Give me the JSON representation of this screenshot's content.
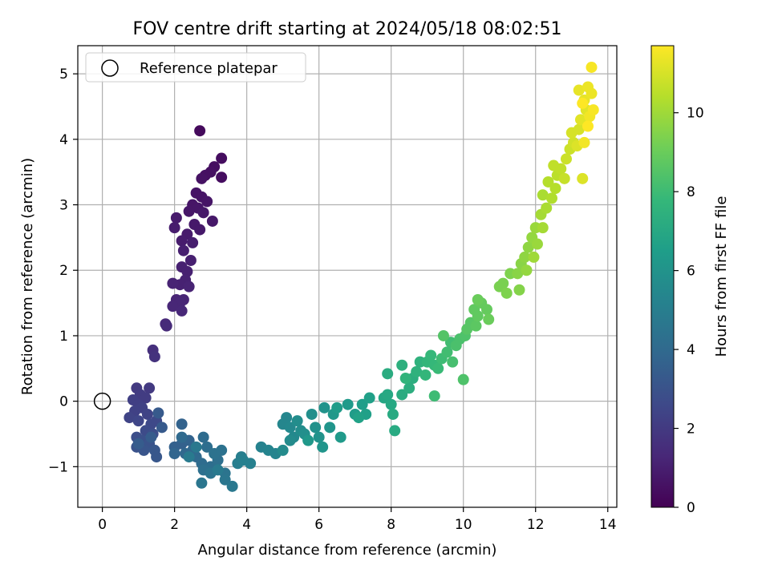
{
  "chart_data": {
    "type": "scatter",
    "title": "FOV centre drift starting at 2024/05/18 08:02:51",
    "xlabel": "Angular distance from reference (arcmin)",
    "ylabel": "Rotation from reference (arcmin)",
    "xlim": [
      -0.68,
      14.25
    ],
    "ylim": [
      -1.62,
      5.43
    ],
    "xticks": [
      0,
      2,
      4,
      6,
      8,
      10,
      12,
      14
    ],
    "yticks": [
      -1,
      0,
      1,
      2,
      3,
      4,
      5
    ],
    "xtick_labels": [
      "0",
      "2",
      "4",
      "6",
      "8",
      "10",
      "12",
      "14"
    ],
    "ytick_labels": [
      "−1",
      "0",
      "1",
      "2",
      "3",
      "4",
      "5"
    ],
    "grid": true,
    "legend": {
      "location": "upper-left",
      "entries": [
        "Reference platepar"
      ]
    },
    "reference_point": {
      "x": 0,
      "y": 0,
      "marker": "open-circle"
    },
    "colorbar": {
      "label": "Hours from first FF file",
      "range": [
        0,
        11.7
      ],
      "ticks": [
        0,
        2,
        4,
        6,
        8,
        10
      ],
      "tick_labels": [
        "0",
        "2",
        "4",
        "6",
        "8",
        "10"
      ],
      "colormap": "viridis",
      "colors": [
        "#440154",
        "#482878",
        "#3e4989",
        "#31688e",
        "#26828e",
        "#1f9e89",
        "#35b779",
        "#6ece58",
        "#b5de2b",
        "#fde725"
      ]
    },
    "points": [
      [
        2.7,
        4.13,
        0.3
      ],
      [
        3.3,
        3.71,
        0.4
      ],
      [
        3.3,
        3.42,
        0.4
      ],
      [
        3.1,
        3.58,
        0.45
      ],
      [
        3.0,
        3.5,
        0.5
      ],
      [
        2.85,
        3.45,
        0.5
      ],
      [
        2.75,
        3.4,
        0.55
      ],
      [
        2.6,
        3.18,
        0.6
      ],
      [
        2.75,
        3.12,
        0.6
      ],
      [
        2.9,
        3.05,
        0.65
      ],
      [
        2.5,
        3.0,
        0.65
      ],
      [
        2.65,
        2.95,
        0.7
      ],
      [
        2.4,
        2.9,
        0.7
      ],
      [
        2.8,
        2.88,
        0.75
      ],
      [
        3.05,
        2.75,
        0.75
      ],
      [
        2.55,
        2.7,
        0.8
      ],
      [
        2.7,
        2.62,
        0.8
      ],
      [
        2.35,
        2.55,
        0.85
      ],
      [
        2.05,
        2.8,
        0.85
      ],
      [
        2.0,
        2.65,
        0.9
      ],
      [
        2.2,
        2.45,
        0.9
      ],
      [
        2.5,
        2.42,
        0.95
      ],
      [
        2.25,
        2.3,
        1.0
      ],
      [
        2.45,
        2.15,
        1.0
      ],
      [
        2.2,
        2.05,
        1.05
      ],
      [
        2.35,
        1.98,
        1.05
      ],
      [
        2.3,
        1.85,
        1.1
      ],
      [
        2.15,
        1.78,
        1.1
      ],
      [
        2.4,
        1.75,
        1.15
      ],
      [
        1.95,
        1.8,
        1.15
      ],
      [
        2.25,
        1.55,
        1.2
      ],
      [
        2.05,
        1.55,
        1.2
      ],
      [
        2.15,
        1.5,
        1.25
      ],
      [
        1.95,
        1.45,
        1.25
      ],
      [
        2.2,
        1.38,
        1.3
      ],
      [
        1.75,
        1.18,
        1.35
      ],
      [
        1.78,
        1.15,
        1.4
      ],
      [
        1.4,
        0.78,
        1.6
      ],
      [
        1.45,
        0.68,
        1.7
      ],
      [
        0.95,
        0.2,
        2.0
      ],
      [
        1.3,
        0.2,
        2.0
      ],
      [
        1.05,
        0.1,
        2.1
      ],
      [
        1.2,
        0.05,
        2.1
      ],
      [
        0.85,
        0.02,
        2.2
      ],
      [
        1.0,
        -0.05,
        2.2
      ],
      [
        1.1,
        -0.1,
        2.3
      ],
      [
        0.9,
        -0.15,
        2.3
      ],
      [
        1.25,
        -0.2,
        2.4
      ],
      [
        0.75,
        -0.25,
        2.4
      ],
      [
        1.0,
        -0.3,
        2.5
      ],
      [
        1.35,
        -0.35,
        2.6
      ],
      [
        1.5,
        -0.3,
        2.6
      ],
      [
        1.2,
        -0.45,
        2.7
      ],
      [
        1.4,
        -0.5,
        2.8
      ],
      [
        0.95,
        -0.55,
        2.8
      ],
      [
        1.1,
        -0.6,
        2.9
      ],
      [
        1.3,
        -0.65,
        3.0
      ],
      [
        0.95,
        -0.7,
        3.0
      ],
      [
        1.15,
        -0.75,
        3.1
      ],
      [
        1.45,
        -0.75,
        3.2
      ],
      [
        1.5,
        -0.85,
        3.2
      ],
      [
        1.55,
        -0.18,
        3.3
      ],
      [
        1.65,
        -0.4,
        3.3
      ],
      [
        1.35,
        -0.55,
        3.4
      ],
      [
        1.0,
        -0.65,
        3.4
      ],
      [
        2.0,
        -0.7,
        3.6
      ],
      [
        2.2,
        -0.65,
        3.6
      ],
      [
        2.4,
        -0.6,
        3.7
      ],
      [
        2.2,
        -0.35,
        3.7
      ],
      [
        2.0,
        -0.8,
        3.8
      ],
      [
        2.3,
        -0.8,
        3.9
      ],
      [
        2.5,
        -0.75,
        3.9
      ],
      [
        2.2,
        -0.55,
        4.0
      ],
      [
        2.6,
        -0.85,
        4.0
      ],
      [
        2.8,
        -0.55,
        4.1
      ],
      [
        2.75,
        -0.95,
        4.1
      ],
      [
        2.9,
        -0.7,
        4.2
      ],
      [
        3.0,
        -1.0,
        4.2
      ],
      [
        3.2,
        -0.9,
        4.3
      ],
      [
        2.8,
        -1.05,
        4.3
      ],
      [
        3.1,
        -0.8,
        4.4
      ],
      [
        3.3,
        -0.75,
        4.4
      ],
      [
        3.4,
        -1.1,
        4.5
      ],
      [
        3.0,
        -1.1,
        4.5
      ],
      [
        2.75,
        -1.25,
        4.6
      ],
      [
        3.4,
        -1.2,
        4.6
      ],
      [
        3.6,
        -1.3,
        4.7
      ],
      [
        2.6,
        -0.7,
        4.7
      ],
      [
        2.4,
        -0.85,
        4.8
      ],
      [
        3.2,
        -1.05,
        4.8
      ],
      [
        3.75,
        -0.95,
        5.0
      ],
      [
        3.85,
        -0.85,
        5.0
      ],
      [
        4.1,
        -0.95,
        5.1
      ],
      [
        3.9,
        -0.9,
        5.1
      ],
      [
        4.4,
        -0.7,
        5.2
      ],
      [
        4.6,
        -0.75,
        5.3
      ],
      [
        4.8,
        -0.8,
        5.3
      ],
      [
        5.0,
        -0.35,
        5.4
      ],
      [
        5.1,
        -0.25,
        5.4
      ],
      [
        5.2,
        -0.4,
        5.5
      ],
      [
        5.3,
        -0.55,
        5.5
      ],
      [
        5.0,
        -0.75,
        5.6
      ],
      [
        5.2,
        -0.6,
        5.6
      ],
      [
        5.5,
        -0.45,
        5.7
      ],
      [
        5.4,
        -0.3,
        5.7
      ],
      [
        5.6,
        -0.5,
        5.8
      ],
      [
        5.8,
        -0.2,
        5.8
      ],
      [
        5.9,
        -0.4,
        5.9
      ],
      [
        6.0,
        -0.55,
        6.0
      ],
      [
        6.15,
        -0.1,
        6.0
      ],
      [
        6.3,
        -0.4,
        6.1
      ],
      [
        6.1,
        -0.7,
        6.1
      ],
      [
        5.7,
        -0.6,
        6.2
      ],
      [
        6.4,
        -0.2,
        6.2
      ],
      [
        6.6,
        -0.55,
        6.3
      ],
      [
        6.8,
        -0.05,
        6.3
      ],
      [
        6.5,
        -0.1,
        6.4
      ],
      [
        7.0,
        -0.2,
        6.4
      ],
      [
        7.2,
        -0.05,
        6.5
      ],
      [
        7.4,
        0.05,
        6.6
      ],
      [
        7.3,
        -0.2,
        6.6
      ],
      [
        7.1,
        -0.25,
        6.7
      ],
      [
        7.8,
        0.05,
        6.9
      ],
      [
        7.9,
        0.1,
        7.0
      ],
      [
        8.0,
        -0.05,
        7.0
      ],
      [
        8.1,
        -0.45,
        7.1
      ],
      [
        8.05,
        -0.2,
        7.1
      ],
      [
        7.9,
        0.42,
        7.2
      ],
      [
        8.3,
        0.1,
        7.2
      ],
      [
        8.5,
        0.2,
        7.3
      ],
      [
        8.6,
        0.35,
        7.3
      ],
      [
        8.3,
        0.55,
        7.4
      ],
      [
        8.7,
        0.45,
        7.5
      ],
      [
        8.8,
        0.6,
        7.5
      ],
      [
        8.4,
        0.35,
        7.6
      ],
      [
        8.95,
        0.4,
        7.7
      ],
      [
        9.0,
        0.6,
        7.7
      ],
      [
        9.1,
        0.7,
        7.8
      ],
      [
        9.2,
        0.55,
        7.8
      ],
      [
        9.3,
        0.5,
        7.9
      ],
      [
        9.4,
        0.65,
        8.0
      ],
      [
        9.2,
        0.08,
        8.0
      ],
      [
        9.55,
        0.75,
        8.1
      ],
      [
        9.65,
        0.9,
        8.1
      ],
      [
        9.7,
        0.6,
        8.2
      ],
      [
        9.8,
        0.85,
        8.3
      ],
      [
        9.9,
        0.95,
        8.3
      ],
      [
        10.0,
        0.33,
        8.4
      ],
      [
        10.05,
        1.0,
        8.4
      ],
      [
        9.45,
        1.0,
        8.5
      ],
      [
        10.1,
        1.1,
        8.6
      ],
      [
        10.2,
        1.2,
        8.6
      ],
      [
        10.35,
        1.15,
        8.7
      ],
      [
        10.4,
        1.3,
        8.8
      ],
      [
        10.3,
        1.4,
        8.8
      ],
      [
        10.5,
        1.5,
        8.9
      ],
      [
        10.65,
        1.4,
        8.9
      ],
      [
        10.7,
        1.25,
        9.0
      ],
      [
        10.4,
        1.55,
        9.0
      ],
      [
        11.0,
        1.75,
        9.3
      ],
      [
        11.1,
        1.8,
        9.3
      ],
      [
        11.2,
        1.65,
        9.4
      ],
      [
        11.3,
        1.95,
        9.4
      ],
      [
        11.55,
        1.7,
        9.5
      ],
      [
        11.5,
        1.95,
        9.6
      ],
      [
        11.6,
        2.1,
        9.6
      ],
      [
        11.7,
        2.2,
        9.7
      ],
      [
        11.8,
        2.35,
        9.7
      ],
      [
        11.75,
        2.0,
        9.8
      ],
      [
        11.9,
        2.5,
        9.8
      ],
      [
        12.0,
        2.65,
        9.9
      ],
      [
        12.05,
        2.4,
        9.9
      ],
      [
        11.95,
        2.2,
        10.0
      ],
      [
        12.2,
        2.65,
        10.1
      ],
      [
        12.15,
        2.85,
        10.1
      ],
      [
        12.3,
        2.95,
        10.2
      ],
      [
        12.2,
        3.15,
        10.2
      ],
      [
        12.45,
        3.1,
        10.3
      ],
      [
        12.35,
        3.35,
        10.4
      ],
      [
        12.55,
        3.25,
        10.4
      ],
      [
        12.6,
        3.45,
        10.5
      ],
      [
        12.5,
        3.6,
        10.6
      ],
      [
        12.7,
        3.55,
        10.6
      ],
      [
        12.8,
        3.4,
        10.7
      ],
      [
        12.85,
        3.7,
        10.8
      ],
      [
        12.95,
        3.85,
        10.8
      ],
      [
        13.05,
        3.95,
        10.9
      ],
      [
        13.0,
        4.1,
        11.0
      ],
      [
        13.2,
        4.15,
        11.0
      ],
      [
        13.15,
        3.9,
        11.1
      ],
      [
        13.3,
        3.4,
        11.1
      ],
      [
        13.25,
        4.3,
        11.2
      ],
      [
        13.4,
        4.45,
        11.2
      ],
      [
        13.35,
        4.6,
        11.3
      ],
      [
        13.2,
        4.75,
        11.3
      ],
      [
        13.45,
        4.8,
        11.4
      ],
      [
        13.55,
        4.7,
        11.4
      ],
      [
        13.5,
        4.35,
        11.5
      ],
      [
        13.35,
        3.95,
        11.5
      ],
      [
        13.6,
        4.45,
        11.6
      ],
      [
        13.55,
        5.1,
        11.6
      ],
      [
        13.45,
        4.2,
        11.7
      ],
      [
        13.3,
        4.55,
        11.7
      ]
    ]
  }
}
